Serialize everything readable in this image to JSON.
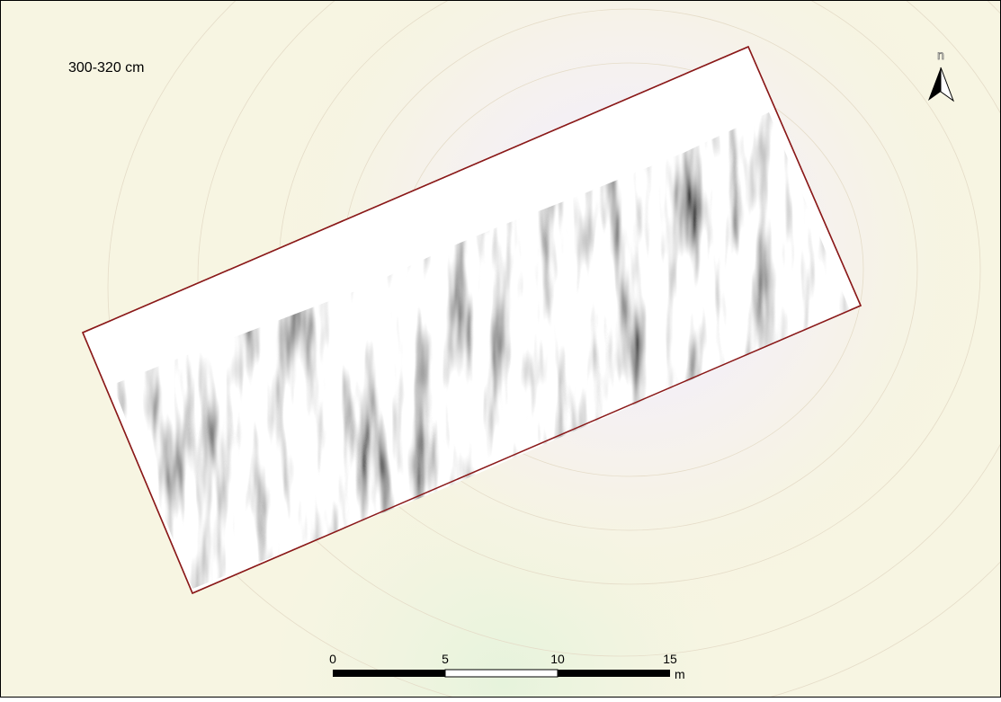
{
  "map": {
    "title": "300-320 cm",
    "north_label": "n",
    "scale_bar": {
      "ticks": [
        "0",
        "5",
        "10",
        "15"
      ],
      "unit": "m"
    }
  }
}
